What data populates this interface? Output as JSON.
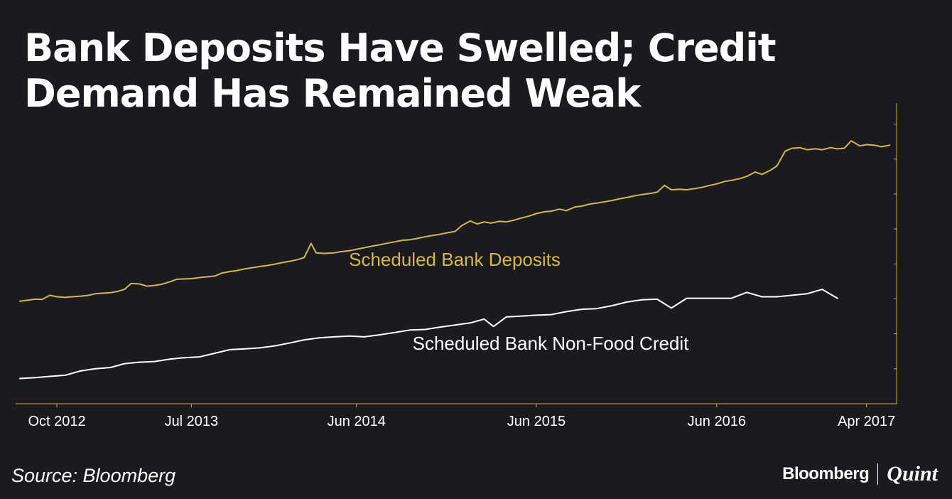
{
  "title": "Bank Deposits Have Swelled; Credit Demand Has Remained Weak",
  "source": "Source: Bloomberg",
  "brand": {
    "primary": "Bloomberg",
    "secondary": "Quint"
  },
  "colors": {
    "background": "#1b1a1e",
    "deposits": "#d3b84a",
    "credit": "#ffffff",
    "axis": "#c9b04b",
    "text": "#ffffff"
  },
  "chart_data": {
    "type": "line",
    "title": "Bank Deposits Have Swelled; Credit Demand Has Remained Weak",
    "xlabel": "",
    "ylabel": "",
    "grid": false,
    "x_tick_labels": [
      "Oct 2012",
      "Jul 2013",
      "Jun 2014",
      "Jun 2015",
      "Jun 2016",
      "Apr 2017"
    ],
    "x_tick_dates": [
      "2012-10-15",
      "2013-07-15",
      "2014-06-15",
      "2015-06-15",
      "2016-06-15",
      "2017-04-15"
    ],
    "x_range": [
      "2012-08-01",
      "2017-06-15"
    ],
    "y_range": [
      0,
      1
    ],
    "series": [
      {
        "name": "Scheduled Bank Deposits",
        "color": "#d3b84a",
        "label": "Scheduled Bank Deposits",
        "points": [
          [
            "2012-08-01",
            0.345
          ],
          [
            "2012-08-15",
            0.348
          ],
          [
            "2012-09-01",
            0.352
          ],
          [
            "2012-09-15",
            0.351
          ],
          [
            "2012-10-01",
            0.365
          ],
          [
            "2012-10-15",
            0.36
          ],
          [
            "2012-11-01",
            0.358
          ],
          [
            "2012-11-15",
            0.36
          ],
          [
            "2012-12-01",
            0.362
          ],
          [
            "2012-12-15",
            0.364
          ],
          [
            "2013-01-01",
            0.37
          ],
          [
            "2013-01-15",
            0.372
          ],
          [
            "2013-02-01",
            0.374
          ],
          [
            "2013-02-15",
            0.378
          ],
          [
            "2013-03-01",
            0.385
          ],
          [
            "2013-03-15",
            0.405
          ],
          [
            "2013-04-01",
            0.403
          ],
          [
            "2013-04-15",
            0.396
          ],
          [
            "2013-05-01",
            0.398
          ],
          [
            "2013-05-15",
            0.402
          ],
          [
            "2013-06-01",
            0.41
          ],
          [
            "2013-06-15",
            0.419
          ],
          [
            "2013-07-01",
            0.42
          ],
          [
            "2013-07-15",
            0.421
          ],
          [
            "2013-08-01",
            0.425
          ],
          [
            "2013-08-15",
            0.427
          ],
          [
            "2013-09-01",
            0.43
          ],
          [
            "2013-09-15",
            0.44
          ],
          [
            "2013-10-01",
            0.445
          ],
          [
            "2013-10-15",
            0.448
          ],
          [
            "2013-11-01",
            0.454
          ],
          [
            "2013-11-15",
            0.458
          ],
          [
            "2013-12-01",
            0.462
          ],
          [
            "2013-12-15",
            0.465
          ],
          [
            "2014-01-01",
            0.47
          ],
          [
            "2014-01-15",
            0.475
          ],
          [
            "2014-02-01",
            0.48
          ],
          [
            "2014-02-15",
            0.485
          ],
          [
            "2014-03-01",
            0.492
          ],
          [
            "2014-03-15",
            0.54
          ],
          [
            "2014-03-25",
            0.508
          ],
          [
            "2014-04-10",
            0.506
          ],
          [
            "2014-05-01",
            0.508
          ],
          [
            "2014-05-15",
            0.512
          ],
          [
            "2014-06-01",
            0.515
          ],
          [
            "2014-06-15",
            0.52
          ],
          [
            "2014-07-01",
            0.525
          ],
          [
            "2014-07-15",
            0.53
          ],
          [
            "2014-08-01",
            0.535
          ],
          [
            "2014-08-15",
            0.54
          ],
          [
            "2014-09-01",
            0.545
          ],
          [
            "2014-09-15",
            0.55
          ],
          [
            "2014-10-01",
            0.552
          ],
          [
            "2014-10-15",
            0.556
          ],
          [
            "2014-11-01",
            0.562
          ],
          [
            "2014-11-15",
            0.566
          ],
          [
            "2014-12-01",
            0.57
          ],
          [
            "2014-12-15",
            0.575
          ],
          [
            "2015-01-01",
            0.58
          ],
          [
            "2015-01-15",
            0.6
          ],
          [
            "2015-02-01",
            0.615
          ],
          [
            "2015-02-15",
            0.605
          ],
          [
            "2015-03-01",
            0.612
          ],
          [
            "2015-03-15",
            0.608
          ],
          [
            "2015-04-01",
            0.614
          ],
          [
            "2015-04-15",
            0.612
          ],
          [
            "2015-05-01",
            0.618
          ],
          [
            "2015-05-15",
            0.625
          ],
          [
            "2015-06-01",
            0.632
          ],
          [
            "2015-06-15",
            0.64
          ],
          [
            "2015-07-01",
            0.646
          ],
          [
            "2015-07-15",
            0.648
          ],
          [
            "2015-08-01",
            0.655
          ],
          [
            "2015-08-15",
            0.65
          ],
          [
            "2015-09-01",
            0.662
          ],
          [
            "2015-09-15",
            0.665
          ],
          [
            "2015-10-01",
            0.672
          ],
          [
            "2015-10-15",
            0.675
          ],
          [
            "2015-11-01",
            0.68
          ],
          [
            "2015-11-15",
            0.684
          ],
          [
            "2015-12-01",
            0.69
          ],
          [
            "2015-12-15",
            0.694
          ],
          [
            "2016-01-01",
            0.7
          ],
          [
            "2016-01-15",
            0.704
          ],
          [
            "2016-02-01",
            0.708
          ],
          [
            "2016-02-15",
            0.712
          ],
          [
            "2016-03-01",
            0.735
          ],
          [
            "2016-03-15",
            0.72
          ],
          [
            "2016-04-01",
            0.722
          ],
          [
            "2016-04-15",
            0.72
          ],
          [
            "2016-05-01",
            0.724
          ],
          [
            "2016-05-15",
            0.728
          ],
          [
            "2016-06-01",
            0.735
          ],
          [
            "2016-06-15",
            0.74
          ],
          [
            "2016-07-01",
            0.748
          ],
          [
            "2016-07-15",
            0.752
          ],
          [
            "2016-08-01",
            0.758
          ],
          [
            "2016-08-15",
            0.765
          ],
          [
            "2016-09-01",
            0.78
          ],
          [
            "2016-09-15",
            0.772
          ],
          [
            "2016-10-01",
            0.785
          ],
          [
            "2016-10-15",
            0.8
          ],
          [
            "2016-11-01",
            0.85
          ],
          [
            "2016-11-15",
            0.86
          ],
          [
            "2016-12-01",
            0.862
          ],
          [
            "2016-12-15",
            0.855
          ],
          [
            "2017-01-01",
            0.858
          ],
          [
            "2017-01-15",
            0.855
          ],
          [
            "2017-02-01",
            0.862
          ],
          [
            "2017-02-15",
            0.858
          ],
          [
            "2017-03-01",
            0.86
          ],
          [
            "2017-03-15",
            0.885
          ],
          [
            "2017-04-01",
            0.868
          ],
          [
            "2017-04-15",
            0.872
          ],
          [
            "2017-05-01",
            0.87
          ],
          [
            "2017-05-15",
            0.865
          ],
          [
            "2017-06-01",
            0.87
          ]
        ]
      },
      {
        "name": "Scheduled Bank Non-Food Credit",
        "color": "#ffffff",
        "label": "Scheduled Bank Non-Food Credit",
        "points": [
          [
            "2012-08-01",
            0.085
          ],
          [
            "2012-09-01",
            0.088
          ],
          [
            "2012-10-01",
            0.092
          ],
          [
            "2012-11-01",
            0.096
          ],
          [
            "2012-12-01",
            0.11
          ],
          [
            "2013-01-01",
            0.118
          ],
          [
            "2013-02-01",
            0.122
          ],
          [
            "2013-03-01",
            0.135
          ],
          [
            "2013-04-01",
            0.14
          ],
          [
            "2013-05-01",
            0.142
          ],
          [
            "2013-06-01",
            0.15
          ],
          [
            "2013-07-01",
            0.155
          ],
          [
            "2013-08-01",
            0.158
          ],
          [
            "2013-09-01",
            0.17
          ],
          [
            "2013-10-01",
            0.182
          ],
          [
            "2013-11-01",
            0.185
          ],
          [
            "2013-12-01",
            0.188
          ],
          [
            "2014-01-01",
            0.195
          ],
          [
            "2014-02-01",
            0.205
          ],
          [
            "2014-03-01",
            0.215
          ],
          [
            "2014-04-01",
            0.222
          ],
          [
            "2014-05-01",
            0.225
          ],
          [
            "2014-06-01",
            0.228
          ],
          [
            "2014-07-01",
            0.225
          ],
          [
            "2014-08-01",
            0.232
          ],
          [
            "2014-09-01",
            0.24
          ],
          [
            "2014-10-01",
            0.248
          ],
          [
            "2014-11-01",
            0.25
          ],
          [
            "2014-12-01",
            0.258
          ],
          [
            "2015-01-01",
            0.265
          ],
          [
            "2015-02-01",
            0.272
          ],
          [
            "2015-03-01",
            0.285
          ],
          [
            "2015-03-20",
            0.26
          ],
          [
            "2015-04-15",
            0.292
          ],
          [
            "2015-05-15",
            0.295
          ],
          [
            "2015-06-15",
            0.298
          ],
          [
            "2015-07-15",
            0.3
          ],
          [
            "2015-08-15",
            0.31
          ],
          [
            "2015-09-15",
            0.318
          ],
          [
            "2015-10-15",
            0.32
          ],
          [
            "2015-11-15",
            0.33
          ],
          [
            "2015-12-15",
            0.342
          ],
          [
            "2016-01-15",
            0.35
          ],
          [
            "2016-02-15",
            0.352
          ],
          [
            "2016-03-15",
            0.322
          ],
          [
            "2016-04-15",
            0.355
          ],
          [
            "2016-05-15",
            0.355
          ],
          [
            "2016-06-15",
            0.355
          ],
          [
            "2016-07-15",
            0.355
          ],
          [
            "2016-08-15",
            0.375
          ],
          [
            "2016-09-15",
            0.36
          ],
          [
            "2016-10-15",
            0.36
          ],
          [
            "2016-11-15",
            0.365
          ],
          [
            "2016-12-15",
            0.37
          ],
          [
            "2017-01-15",
            0.385
          ],
          [
            "2017-02-15",
            0.355
          ]
        ]
      }
    ]
  }
}
